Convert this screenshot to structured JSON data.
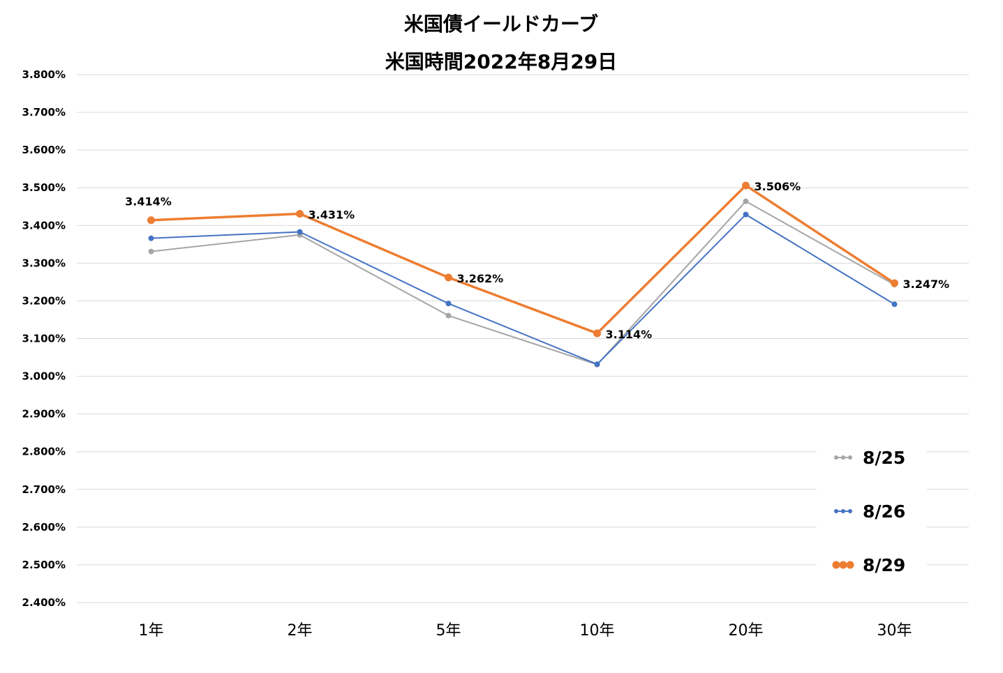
{
  "chart_data": {
    "type": "line",
    "title": "米国債イールドカーブ",
    "subtitle": "米国時間2022年8月29日",
    "categories": [
      "1年",
      "2年",
      "5年",
      "10年",
      "20年",
      "30年"
    ],
    "ylim": [
      2.4,
      3.8
    ],
    "ytick_step": 0.1,
    "ytick_labels": [
      "3.800%",
      "3.700%",
      "3.600%",
      "3.500%",
      "3.400%",
      "3.300%",
      "3.200%",
      "3.100%",
      "3.000%",
      "2.900%",
      "2.800%",
      "2.700%",
      "2.600%",
      "2.500%",
      "2.400%"
    ],
    "grid": true,
    "legend_position": "bottom-right",
    "series": [
      {
        "name": "8/25",
        "color": "#a5a5a5",
        "values": [
          3.331,
          3.375,
          3.161,
          3.031,
          3.464,
          3.243
        ]
      },
      {
        "name": "8/26",
        "color": "#4472c4",
        "values": [
          3.366,
          3.383,
          3.193,
          3.032,
          3.429,
          3.191
        ]
      },
      {
        "name": "8/29",
        "color": "#ed7d31",
        "values": [
          3.414,
          3.431,
          3.262,
          3.114,
          3.506,
          3.247
        ],
        "data_labels": [
          "3.414%",
          "3.431%",
          "3.262%",
          "3.114%",
          "3.506%",
          "3.247%"
        ]
      }
    ]
  }
}
